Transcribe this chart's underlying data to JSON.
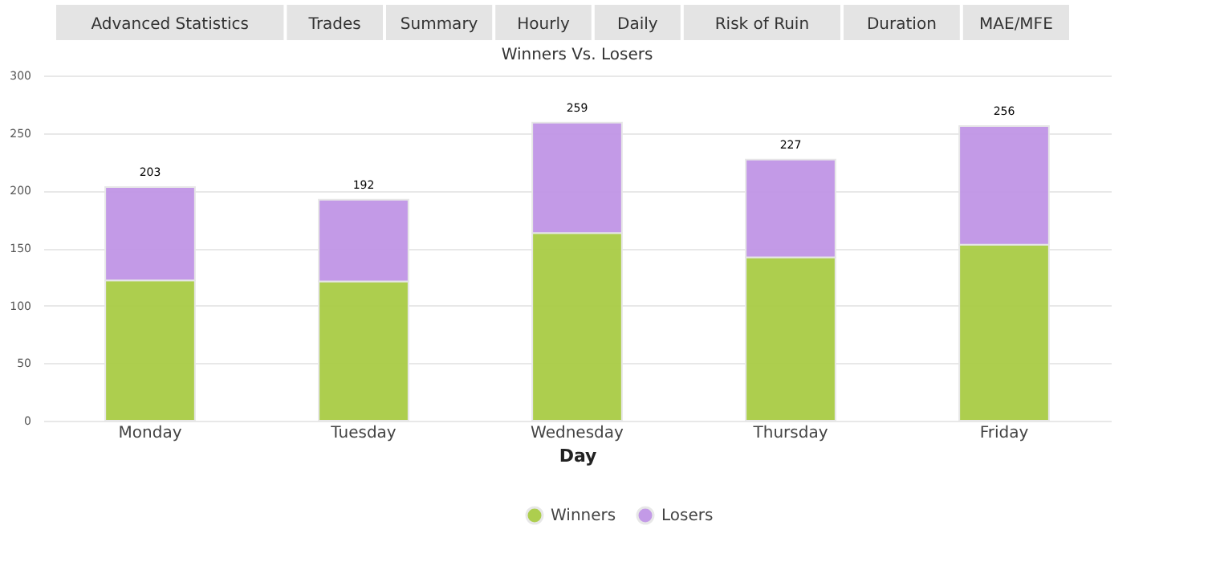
{
  "chart_data": {
    "type": "bar",
    "title": "Winners Vs. Losers",
    "xlabel": "Day",
    "annotations": [
      "Advanced Statistics",
      "Trades",
      "Summary",
      "Hourly",
      "Daily",
      "Risk of Ruin",
      "Duration",
      "MAE/MFE"
    ],
    "categories": [
      "Monday",
      "Tuesday",
      "Wednesday",
      "Thursday",
      "Friday"
    ],
    "series": [
      {
        "name": "Winners",
        "color": "#a9cc45",
        "values": [
          122,
          121,
          163,
          142,
          153
        ]
      },
      {
        "name": "Losers",
        "color": "#c095e6",
        "values": [
          81,
          71,
          96,
          85,
          103
        ]
      }
    ],
    "stacked": true,
    "totals": [
      "203",
      "192",
      "259",
      "227",
      "256"
    ],
    "ylim": [
      0,
      300
    ],
    "yticks": [
      0,
      50,
      100,
      150,
      200,
      250,
      300
    ],
    "grid": "y",
    "legend": "bottom"
  }
}
